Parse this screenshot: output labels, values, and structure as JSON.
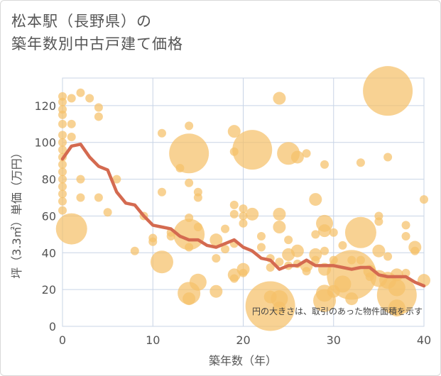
{
  "title_line1": "松本駅（長野県）の",
  "title_line2": "築年数別中古戸建て価格",
  "chart_data": {
    "type": "scatter",
    "title": "松本駅（長野県）の築年数別中古戸建て価格",
    "xlabel": "築年数（年）",
    "ylabel": "坪（3.3㎡）単価（万円）",
    "xlim": [
      0,
      40
    ],
    "ylim": [
      0,
      135
    ],
    "xticks": [
      0,
      10,
      20,
      30,
      40
    ],
    "yticks": [
      0,
      20,
      40,
      60,
      80,
      100,
      120
    ],
    "grid": true,
    "annotation": "円の大きさは、取引のあった物件面積を示す",
    "colors": {
      "bubble": "#f5c06a",
      "line": "#d46a50",
      "grid": "#c8d4e6",
      "axis_text": "#555555"
    },
    "bubble_series": {
      "name": "取引物件",
      "points": [
        {
          "x": 0,
          "y": 125,
          "s": 1
        },
        {
          "x": 0,
          "y": 122,
          "s": 1
        },
        {
          "x": 0,
          "y": 118,
          "s": 1
        },
        {
          "x": 0,
          "y": 115,
          "s": 1
        },
        {
          "x": 0,
          "y": 110,
          "s": 1
        },
        {
          "x": 0,
          "y": 104,
          "s": 1
        },
        {
          "x": 0,
          "y": 100,
          "s": 1
        },
        {
          "x": 0,
          "y": 96,
          "s": 1
        },
        {
          "x": 0,
          "y": 92,
          "s": 1
        },
        {
          "x": 0,
          "y": 88,
          "s": 1
        },
        {
          "x": 0,
          "y": 84,
          "s": 1
        },
        {
          "x": 0,
          "y": 80,
          "s": 1
        },
        {
          "x": 0,
          "y": 76,
          "s": 1
        },
        {
          "x": 0,
          "y": 72,
          "s": 1
        },
        {
          "x": 0,
          "y": 68,
          "s": 1
        },
        {
          "x": 0,
          "y": 63,
          "s": 1
        },
        {
          "x": 1,
          "y": 124,
          "s": 1
        },
        {
          "x": 1,
          "y": 110,
          "s": 1
        },
        {
          "x": 1,
          "y": 103,
          "s": 1
        },
        {
          "x": 1,
          "y": 53,
          "s": 5
        },
        {
          "x": 2,
          "y": 127,
          "s": 1
        },
        {
          "x": 2,
          "y": 80,
          "s": 1
        },
        {
          "x": 2,
          "y": 70,
          "s": 1
        },
        {
          "x": 3,
          "y": 124,
          "s": 1
        },
        {
          "x": 4,
          "y": 119,
          "s": 1
        },
        {
          "x": 4,
          "y": 114,
          "s": 1
        },
        {
          "x": 4,
          "y": 70,
          "s": 1
        },
        {
          "x": 5,
          "y": 62,
          "s": 1
        },
        {
          "x": 6,
          "y": 80,
          "s": 1
        },
        {
          "x": 8,
          "y": 41,
          "s": 1
        },
        {
          "x": 9,
          "y": 60,
          "s": 1
        },
        {
          "x": 10,
          "y": 48,
          "s": 1
        },
        {
          "x": 10,
          "y": 46,
          "s": 1
        },
        {
          "x": 11,
          "y": 105,
          "s": 1
        },
        {
          "x": 11,
          "y": 73,
          "s": 1
        },
        {
          "x": 11,
          "y": 35,
          "s": 4
        },
        {
          "x": 12,
          "y": 51,
          "s": 1
        },
        {
          "x": 12,
          "y": 49,
          "s": 1
        },
        {
          "x": 13,
          "y": 86,
          "s": 1
        },
        {
          "x": 14,
          "y": 94,
          "s": 6
        },
        {
          "x": 14,
          "y": 109,
          "s": 1
        },
        {
          "x": 14,
          "y": 78,
          "s": 1
        },
        {
          "x": 14,
          "y": 59,
          "s": 1
        },
        {
          "x": 14,
          "y": 50,
          "s": 5
        },
        {
          "x": 14,
          "y": 43,
          "s": 1
        },
        {
          "x": 14,
          "y": 18,
          "s": 4
        },
        {
          "x": 14,
          "y": 15,
          "s": 2
        },
        {
          "x": 15,
          "y": 73,
          "s": 1
        },
        {
          "x": 15,
          "y": 70,
          "s": 1
        },
        {
          "x": 15,
          "y": 54,
          "s": 1
        },
        {
          "x": 15,
          "y": 24,
          "s": 3
        },
        {
          "x": 17,
          "y": 47,
          "s": 2
        },
        {
          "x": 17,
          "y": 37,
          "s": 1
        },
        {
          "x": 17,
          "y": 19,
          "s": 2
        },
        {
          "x": 18,
          "y": 53,
          "s": 1
        },
        {
          "x": 18,
          "y": 42,
          "s": 1
        },
        {
          "x": 19,
          "y": 106,
          "s": 2
        },
        {
          "x": 19,
          "y": 95,
          "s": 1
        },
        {
          "x": 19,
          "y": 66,
          "s": 1
        },
        {
          "x": 19,
          "y": 61,
          "s": 1
        },
        {
          "x": 19,
          "y": 45,
          "s": 1
        },
        {
          "x": 19,
          "y": 28,
          "s": 2
        },
        {
          "x": 19,
          "y": 26,
          "s": 1
        },
        {
          "x": 20,
          "y": 64,
          "s": 1
        },
        {
          "x": 20,
          "y": 60,
          "s": 1
        },
        {
          "x": 20,
          "y": 56,
          "s": 1
        },
        {
          "x": 20,
          "y": 31,
          "s": 2
        },
        {
          "x": 20,
          "y": 29,
          "s": 1
        },
        {
          "x": 21,
          "y": 96,
          "s": 6
        },
        {
          "x": 21,
          "y": 61,
          "s": 2
        },
        {
          "x": 22,
          "y": 49,
          "s": 1
        },
        {
          "x": 22,
          "y": 43,
          "s": 1
        },
        {
          "x": 23,
          "y": 37,
          "s": 1
        },
        {
          "x": 23,
          "y": 32,
          "s": 1
        },
        {
          "x": 23,
          "y": 16,
          "s": 2
        },
        {
          "x": 23,
          "y": 11,
          "s": 7
        },
        {
          "x": 24,
          "y": 124,
          "s": 2
        },
        {
          "x": 24,
          "y": 61,
          "s": 2
        },
        {
          "x": 24,
          "y": 54,
          "s": 2
        },
        {
          "x": 24,
          "y": 35,
          "s": 1
        },
        {
          "x": 24,
          "y": 15,
          "s": 3
        },
        {
          "x": 24,
          "y": 10,
          "s": 2
        },
        {
          "x": 25,
          "y": 94,
          "s": 4
        },
        {
          "x": 25,
          "y": 47,
          "s": 1
        },
        {
          "x": 25,
          "y": 39,
          "s": 2
        },
        {
          "x": 25,
          "y": 33,
          "s": 1
        },
        {
          "x": 26,
          "y": 92,
          "s": 2
        },
        {
          "x": 26,
          "y": 41,
          "s": 2
        },
        {
          "x": 26,
          "y": 34,
          "s": 1
        },
        {
          "x": 27,
          "y": 94,
          "s": 1
        },
        {
          "x": 27,
          "y": 33,
          "s": 2
        },
        {
          "x": 27,
          "y": 30,
          "s": 1
        },
        {
          "x": 28,
          "y": 69,
          "s": 2
        },
        {
          "x": 28,
          "y": 50,
          "s": 1
        },
        {
          "x": 28,
          "y": 39,
          "s": 2
        },
        {
          "x": 28,
          "y": 36,
          "s": 1
        },
        {
          "x": 29,
          "y": 88,
          "s": 1
        },
        {
          "x": 29,
          "y": 56,
          "s": 3
        },
        {
          "x": 29,
          "y": 52,
          "s": 2
        },
        {
          "x": 29,
          "y": 41,
          "s": 1
        },
        {
          "x": 29,
          "y": 31,
          "s": 2
        },
        {
          "x": 29,
          "y": 18,
          "s": 3
        },
        {
          "x": 29,
          "y": 14,
          "s": 4
        },
        {
          "x": 30,
          "y": 51,
          "s": 1
        },
        {
          "x": 30,
          "y": 36,
          "s": 1
        },
        {
          "x": 30,
          "y": 19,
          "s": 2
        },
        {
          "x": 31,
          "y": 44,
          "s": 1
        },
        {
          "x": 31,
          "y": 23,
          "s": 3
        },
        {
          "x": 32,
          "y": 36,
          "s": 1
        },
        {
          "x": 32,
          "y": 28,
          "s": 7
        },
        {
          "x": 32,
          "y": 15,
          "s": 2
        },
        {
          "x": 33,
          "y": 89,
          "s": 1
        },
        {
          "x": 33,
          "y": 51,
          "s": 5
        },
        {
          "x": 33,
          "y": 36,
          "s": 1
        },
        {
          "x": 34,
          "y": 30,
          "s": 2
        },
        {
          "x": 34,
          "y": 27,
          "s": 1
        },
        {
          "x": 35,
          "y": 60,
          "s": 1
        },
        {
          "x": 35,
          "y": 57,
          "s": 1
        },
        {
          "x": 35,
          "y": 41,
          "s": 2
        },
        {
          "x": 35,
          "y": 26,
          "s": 3
        },
        {
          "x": 36,
          "y": 128,
          "s": 7
        },
        {
          "x": 36,
          "y": 92,
          "s": 1
        },
        {
          "x": 36,
          "y": 38,
          "s": 1
        },
        {
          "x": 36,
          "y": 25,
          "s": 3
        },
        {
          "x": 37,
          "y": 28,
          "s": 2
        },
        {
          "x": 37,
          "y": 21,
          "s": 3
        },
        {
          "x": 37,
          "y": 17,
          "s": 6
        },
        {
          "x": 37,
          "y": 10,
          "s": 3
        },
        {
          "x": 38,
          "y": 55,
          "s": 1
        },
        {
          "x": 38,
          "y": 49,
          "s": 1
        },
        {
          "x": 38,
          "y": 29,
          "s": 1
        },
        {
          "x": 39,
          "y": 43,
          "s": 2
        },
        {
          "x": 39,
          "y": 41,
          "s": 1
        },
        {
          "x": 40,
          "y": 69,
          "s": 1
        },
        {
          "x": 40,
          "y": 25,
          "s": 2
        }
      ]
    },
    "line_series": {
      "name": "平均",
      "x": [
        0,
        1,
        2,
        3,
        4,
        5,
        6,
        7,
        8,
        9,
        10,
        11,
        12,
        13,
        14,
        15,
        16,
        17,
        18,
        19,
        20,
        21,
        22,
        23,
        24,
        25,
        26,
        27,
        28,
        29,
        30,
        31,
        32,
        33,
        34,
        35,
        36,
        37,
        38,
        39,
        40
      ],
      "y": [
        91,
        98,
        99,
        92,
        87,
        85,
        73,
        67,
        66,
        60,
        55,
        54,
        53,
        49,
        47,
        47,
        44,
        43,
        45,
        47,
        43,
        41,
        37,
        36,
        31,
        33,
        33,
        36,
        33,
        33,
        33,
        32,
        31,
        32,
        32,
        28,
        27,
        27,
        27,
        24,
        22
      ]
    }
  }
}
